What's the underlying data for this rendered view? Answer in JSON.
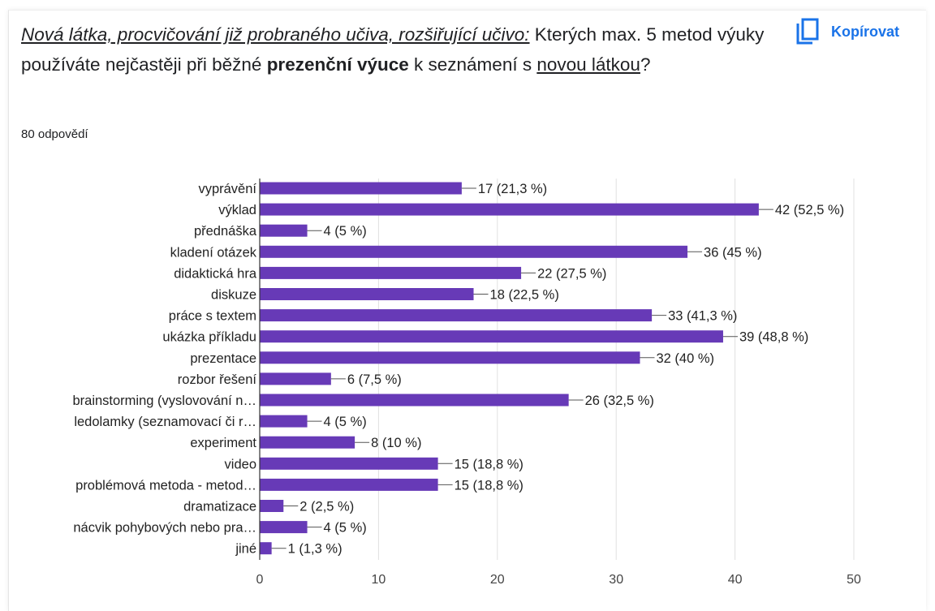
{
  "question": {
    "intro": "Nová látka, procvičování již probraného učiva, rozšiřující učivo:",
    "text_1": " Kterých max. 5 metod výuky používáte nejčastěji při běžné ",
    "bold": "prezenční výuce",
    "text_2": " k seznámení s ",
    "underlined": "novou látkou",
    "text_3": "?"
  },
  "copy_button": {
    "label": "Kopírovat",
    "icon": "copy-icon"
  },
  "responses_count": "80 odpovědí",
  "colors": {
    "bar": "#673ab7",
    "accent": "#1a73e8",
    "grid": "#e0e0e0"
  },
  "chart_data": {
    "type": "bar",
    "orientation": "horizontal",
    "categories": [
      "vyprávění",
      "výklad",
      "přednáška",
      "kladení otázek",
      "didaktická hra",
      "diskuze",
      "práce s textem",
      "ukázka příkladu",
      "prezentace",
      "rozbor řešení",
      "brainstorming (vyslovování n…",
      "ledolamky (seznamovací či r…",
      "experiment",
      "video",
      "problémová metoda - metod…",
      "dramatizace",
      "nácvik pohybových nebo pra…",
      "jiné"
    ],
    "values": [
      17,
      42,
      4,
      36,
      22,
      18,
      33,
      39,
      32,
      6,
      26,
      4,
      8,
      15,
      15,
      2,
      4,
      1
    ],
    "data_labels": [
      "17 (21,3 %)",
      "42 (52,5 %)",
      "4 (5 %)",
      "36 (45 %)",
      "22 (27,5 %)",
      "18 (22,5 %)",
      "33 (41,3 %)",
      "39 (48,8 %)",
      "32 (40 %)",
      "6 (7,5 %)",
      "26 (32,5 %)",
      "4 (5 %)",
      "8 (10 %)",
      "15 (18,8 %)",
      "15 (18,8 %)",
      "2 (2,5 %)",
      "4 (5 %)",
      "1 (1,3 %)"
    ],
    "xlim": [
      0,
      50
    ],
    "xticks": [
      0,
      10,
      20,
      30,
      40,
      50
    ],
    "grid": true,
    "legend": "none"
  }
}
